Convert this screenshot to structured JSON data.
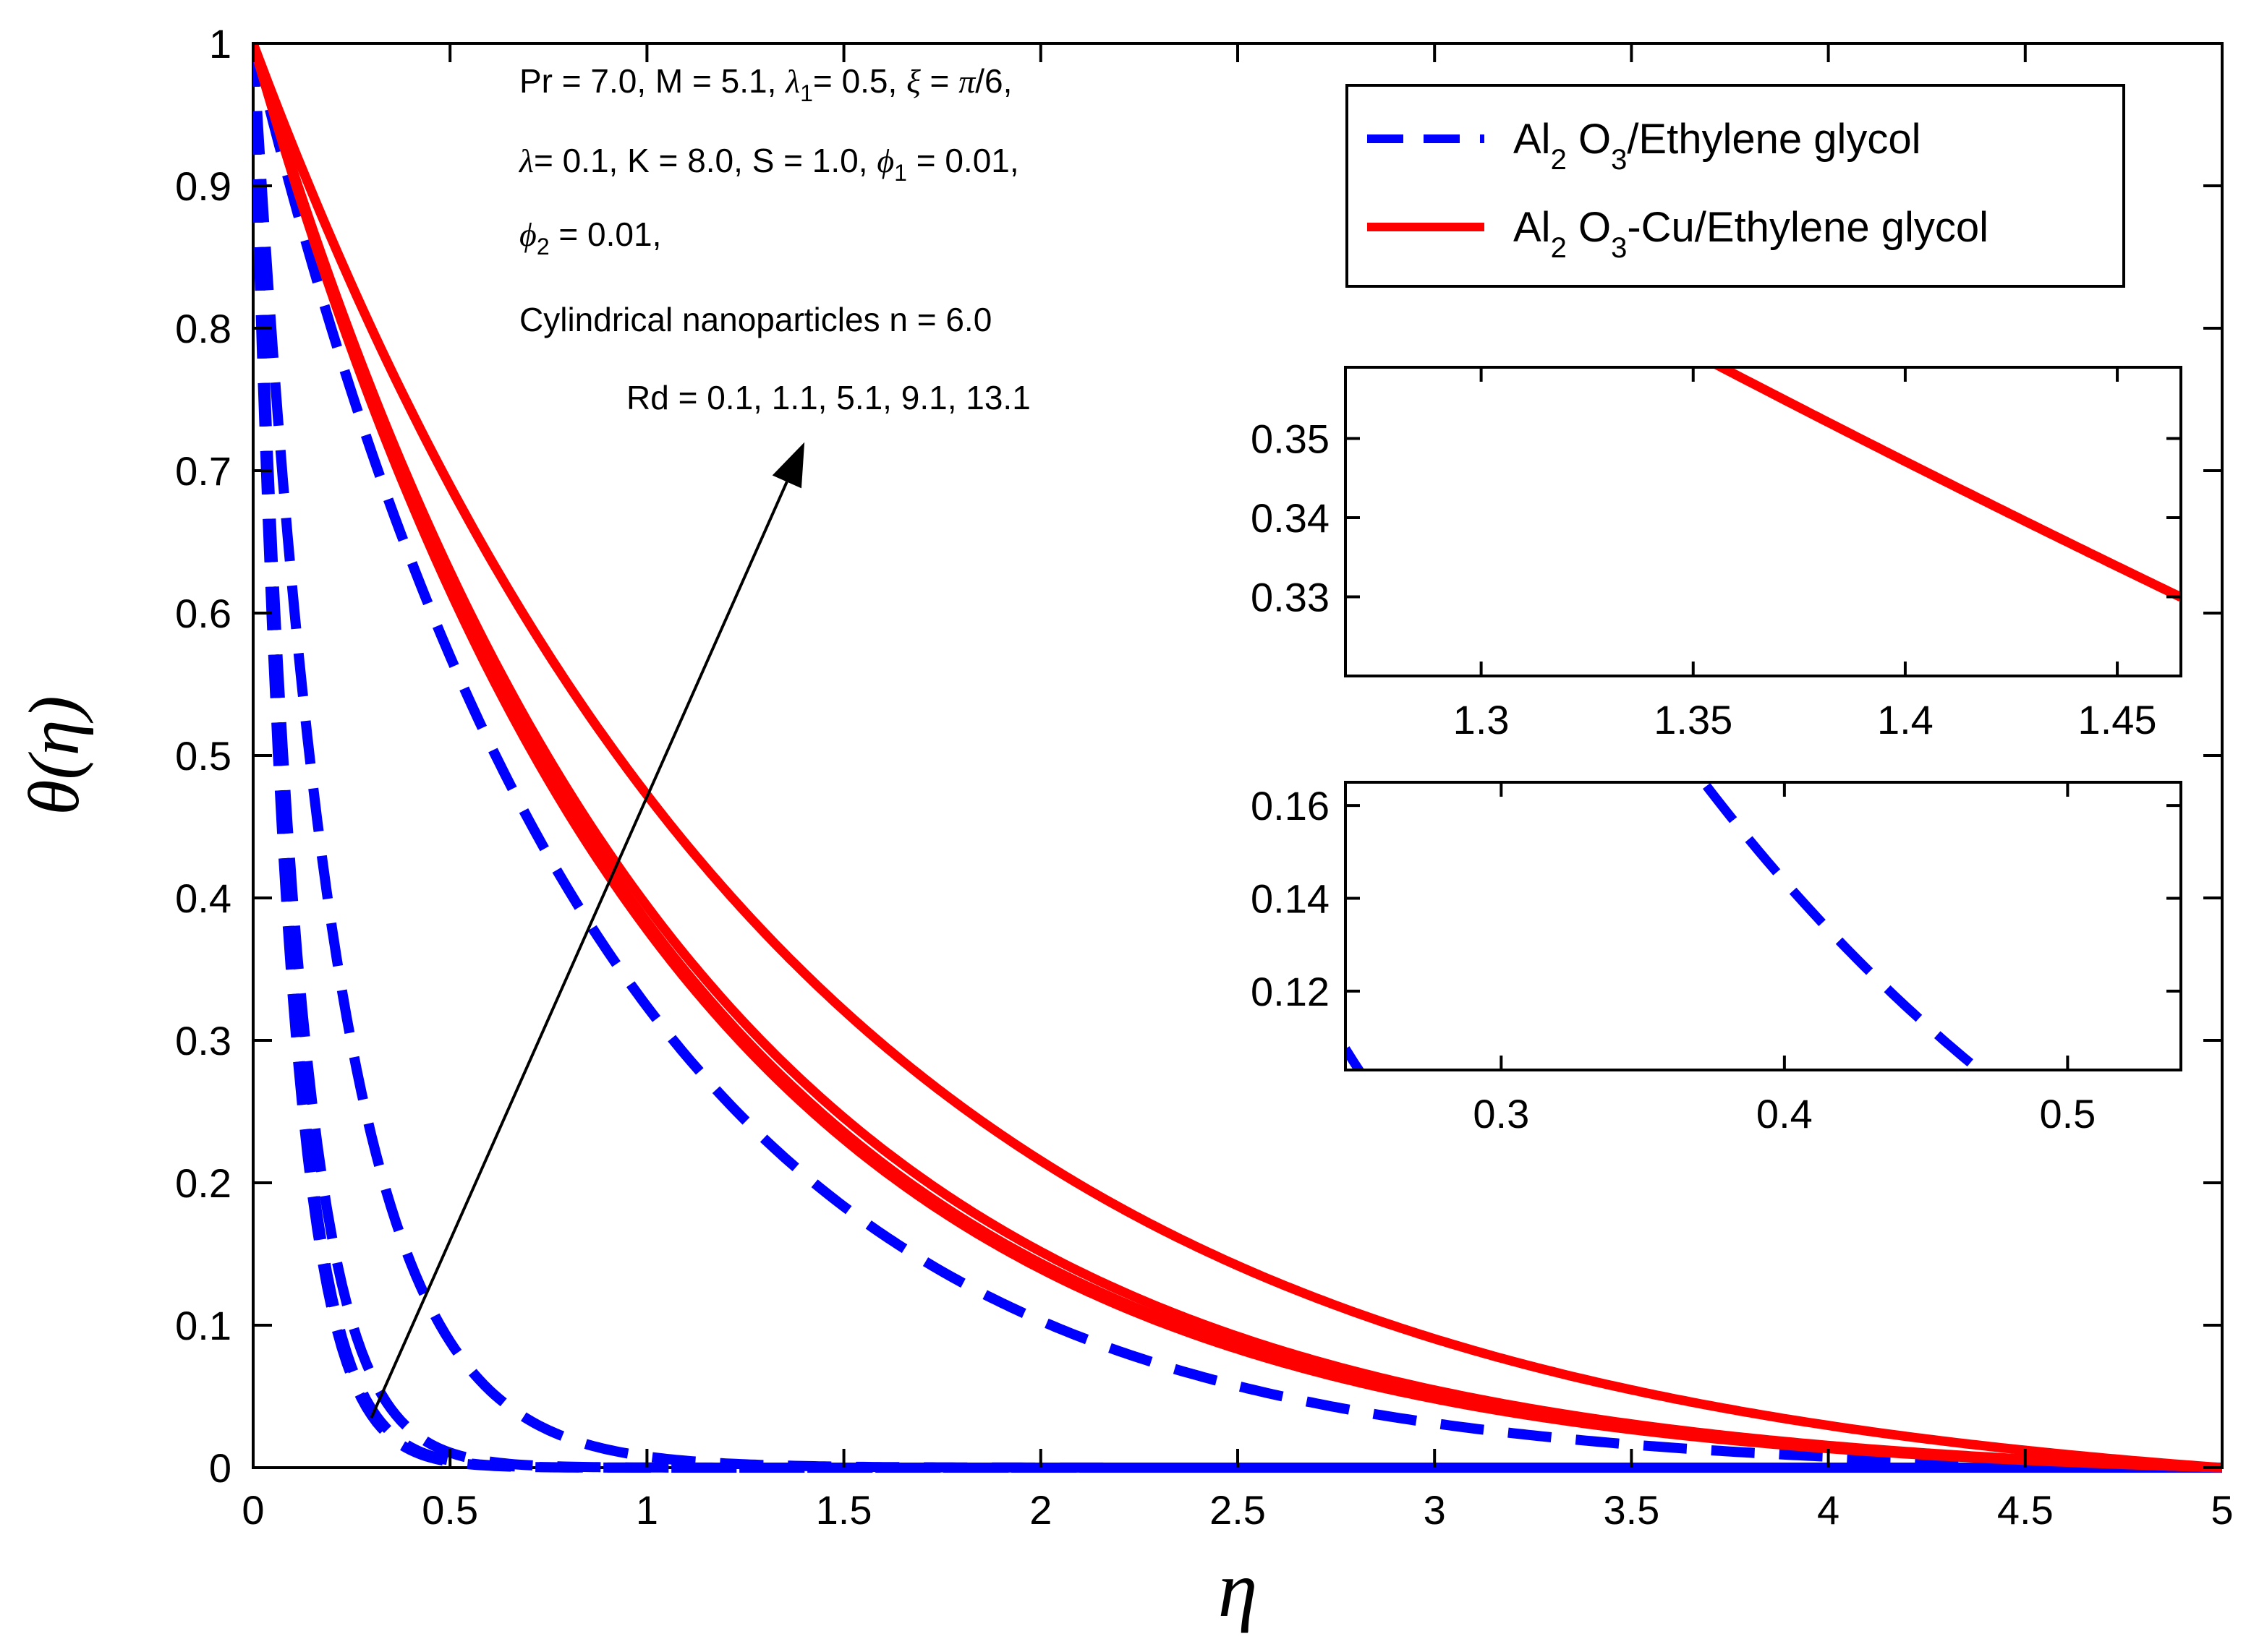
{
  "chart_data": {
    "type": "line",
    "title": "",
    "xlabel": "η",
    "ylabel": "θ(η)",
    "xlim": [
      0,
      5
    ],
    "ylim": [
      0,
      1
    ],
    "xticks": [
      "0",
      "0.5",
      "1",
      "1.5",
      "2",
      "2.5",
      "3",
      "3.5",
      "4",
      "4.5",
      "5"
    ],
    "yticks": [
      "0",
      "0.1",
      "0.2",
      "0.3",
      "0.4",
      "0.5",
      "0.6",
      "0.7",
      "0.8",
      "0.9",
      "1"
    ],
    "colors": {
      "blue": "#0000ff",
      "red": "#ff0000"
    },
    "legend": {
      "position": "top-right",
      "entries": [
        {
          "sym": "Al",
          "sub1": "2",
          "mid": " O",
          "sub2": "3",
          "rest": "/Ethylene glycol",
          "color": "#0000ff",
          "style": "dashed"
        },
        {
          "sym": "Al",
          "sub1": "2",
          "mid": " O",
          "sub2": "3",
          "rest": "-Cu/Ethylene glycol",
          "color": "#ff0000",
          "style": "solid"
        }
      ]
    },
    "annotation": {
      "line1": {
        "a": "Pr = 7.0, M = 5.1,  ",
        "lam": "λ",
        "lamSub": "1",
        "b": "= 0.5, ",
        "xi": "ξ",
        "c": " = ",
        "pi": "π",
        "d": "/6,"
      },
      "line2": {
        "lam": "λ",
        "a": "= 0.1, K = 8.0, S = 1.0, ",
        "phi": "ϕ",
        "phiSub": "1",
        "b": " = 0.01,"
      },
      "line3": {
        "phi": "ϕ",
        "phiSub": "2",
        "a": " = 0.01,"
      },
      "line4": "Cylindrical nanoparticles n = 6.0",
      "line5": "Rd = 0.1, 1.1, 5.1, 9.1, 13.1",
      "arrow": {
        "from": [
          0.3,
          0.035
        ],
        "to": [
          1.4,
          0.72
        ]
      }
    },
    "series": [
      {
        "name": "Al2O3/Ethylene glycol, Rd = 0.1",
        "color": "#0000ff",
        "style": "dashed",
        "model": "exp",
        "k": 11.0
      },
      {
        "name": "Al2O3/Ethylene glycol, Rd = 1.1",
        "color": "#0000ff",
        "style": "dashed",
        "model": "exp",
        "k": 10.6
      },
      {
        "name": "Al2O3/Ethylene glycol, Rd = 5.1",
        "color": "#0000ff",
        "style": "dashed",
        "model": "exp",
        "k": 9.1
      },
      {
        "name": "Al2O3/Ethylene glycol, Rd = 9.1",
        "color": "#0000ff",
        "style": "dashed",
        "model": "exp",
        "k": 4.85
      },
      {
        "name": "Al2O3/Ethylene glycol, Rd = 13.1",
        "color": "#0000ff",
        "style": "dashed",
        "model": "lin",
        "k": 1.12
      },
      {
        "name": "Al2O3-Cu/Ethylene glycol, Rd = 0.1",
        "color": "#ff0000",
        "style": "solid",
        "model": "lin",
        "k": 0.96
      },
      {
        "name": "Al2O3-Cu/Ethylene glycol, Rd = 1.1",
        "color": "#ff0000",
        "style": "solid",
        "model": "lin",
        "k": 0.953
      },
      {
        "name": "Al2O3-Cu/Ethylene glycol, Rd = 5.1",
        "color": "#ff0000",
        "style": "solid",
        "model": "lin",
        "k": 0.945
      },
      {
        "name": "Al2O3-Cu/Ethylene glycol, Rd = 9.1",
        "color": "#ff0000",
        "style": "solid",
        "model": "lin",
        "k": 0.915
      },
      {
        "name": "Al2O3-Cu/Ethylene glycol, Rd = 13.1",
        "color": "#ff0000",
        "style": "solid",
        "model": "lin",
        "k": 0.72
      }
    ],
    "insets": [
      {
        "name": "red-zoom",
        "xlim": [
          1.268,
          1.465
        ],
        "ylim": [
          0.32,
          0.359
        ],
        "xticks": [
          "1.3",
          "1.35",
          "1.4",
          "1.45"
        ],
        "yticks": [
          "0.33",
          "0.34",
          "0.35"
        ],
        "series_color": "#ff0000",
        "series_style": "solid",
        "series": [
          5,
          6,
          7,
          8,
          9
        ]
      },
      {
        "name": "blue-zoom",
        "xlim": [
          0.245,
          0.54
        ],
        "ylim": [
          0.103,
          0.165
        ],
        "xticks": [
          "0.3",
          "0.4",
          "0.5"
        ],
        "yticks": [
          "0.12",
          "0.14",
          "0.16"
        ],
        "series_color": "#0000ff",
        "series_style": "dashed",
        "series": [
          1,
          2,
          3,
          4
        ]
      }
    ]
  }
}
